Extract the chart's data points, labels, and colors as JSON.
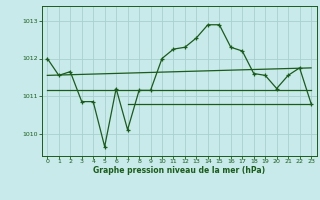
{
  "title": "Graphe pression niveau de la mer (hPa)",
  "background_color": "#c8eaea",
  "grid_color": "#aacfcf",
  "line_color": "#1a5c1a",
  "xlim": [
    -0.5,
    23.5
  ],
  "ylim": [
    1009.4,
    1013.4
  ],
  "yticks": [
    1010,
    1011,
    1012,
    1013
  ],
  "xticks": [
    0,
    1,
    2,
    3,
    4,
    5,
    6,
    7,
    8,
    9,
    10,
    11,
    12,
    13,
    14,
    15,
    16,
    17,
    18,
    19,
    20,
    21,
    22,
    23
  ],
  "main_line_x": [
    0,
    1,
    2,
    3,
    4,
    5,
    6,
    7,
    8,
    9,
    10,
    11,
    12,
    13,
    14,
    15,
    16,
    17,
    18,
    19,
    20,
    21,
    22,
    23
  ],
  "main_line_y": [
    1012.0,
    1011.55,
    1011.65,
    1010.85,
    1010.85,
    1009.65,
    1011.2,
    1010.1,
    1011.15,
    1011.15,
    1012.0,
    1012.25,
    1012.3,
    1012.55,
    1012.9,
    1012.9,
    1012.3,
    1012.2,
    1011.6,
    1011.55,
    1011.2,
    1011.55,
    1011.75,
    1010.8
  ],
  "flat_line1_x": [
    0,
    23
  ],
  "flat_line1_y": [
    1011.15,
    1011.15
  ],
  "flat_line2_x": [
    7,
    23
  ],
  "flat_line2_y": [
    1010.8,
    1010.8
  ],
  "trend_line_x": [
    0,
    23
  ],
  "trend_line_y": [
    1011.55,
    1011.75
  ]
}
